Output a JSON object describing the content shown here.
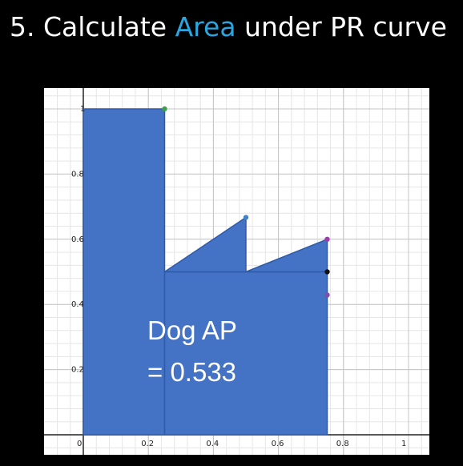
{
  "title": {
    "part1": "5. Calculate ",
    "accent": "Area",
    "part2": " under PR curve",
    "accent_color": "#2aa5e0"
  },
  "chart_data": {
    "type": "area",
    "title": "5. Calculate Area under PR curve",
    "xlabel": "",
    "ylabel": "",
    "xlim": [
      0,
      1
    ],
    "ylim": [
      0,
      1
    ],
    "grid": true,
    "x_ticks": [
      "0",
      "0.2",
      "0.4",
      "0.6",
      "0.8",
      "1"
    ],
    "y_ticks": [
      "0.2",
      "0.4",
      "0.6",
      "0.8",
      "1"
    ],
    "fill_color": "#4472c4",
    "edge_color": "#2e5aa8",
    "regions": [
      {
        "label": "rect-1",
        "x0": 0,
        "x1": 0.25,
        "y0": 0,
        "y1": 1.0
      },
      {
        "label": "rect-2",
        "x0": 0.25,
        "x1": 0.75,
        "y0": 0,
        "y1": 0.5
      },
      {
        "label": "triangle-1",
        "points": [
          [
            0.25,
            0.5
          ],
          [
            0.5,
            0.667
          ],
          [
            0.5,
            0.5
          ]
        ]
      },
      {
        "label": "triangle-2",
        "points": [
          [
            0.5,
            0.5
          ],
          [
            0.75,
            0.6
          ],
          [
            0.75,
            0.5
          ]
        ]
      }
    ],
    "points": [
      {
        "x": 0.25,
        "y": 1.0,
        "color": "#3aa14a"
      },
      {
        "x": 0.5,
        "y": 0.667,
        "color": "#3d85c6"
      },
      {
        "x": 0.75,
        "y": 0.6,
        "color": "#9b3fa8"
      },
      {
        "x": 0.75,
        "y": 0.5,
        "color": "#111111"
      },
      {
        "x": 0.75,
        "y": 0.429,
        "color": "#7a52a8"
      }
    ],
    "annotation": {
      "line1": "Dog AP",
      "line2": "= 0.533"
    }
  }
}
